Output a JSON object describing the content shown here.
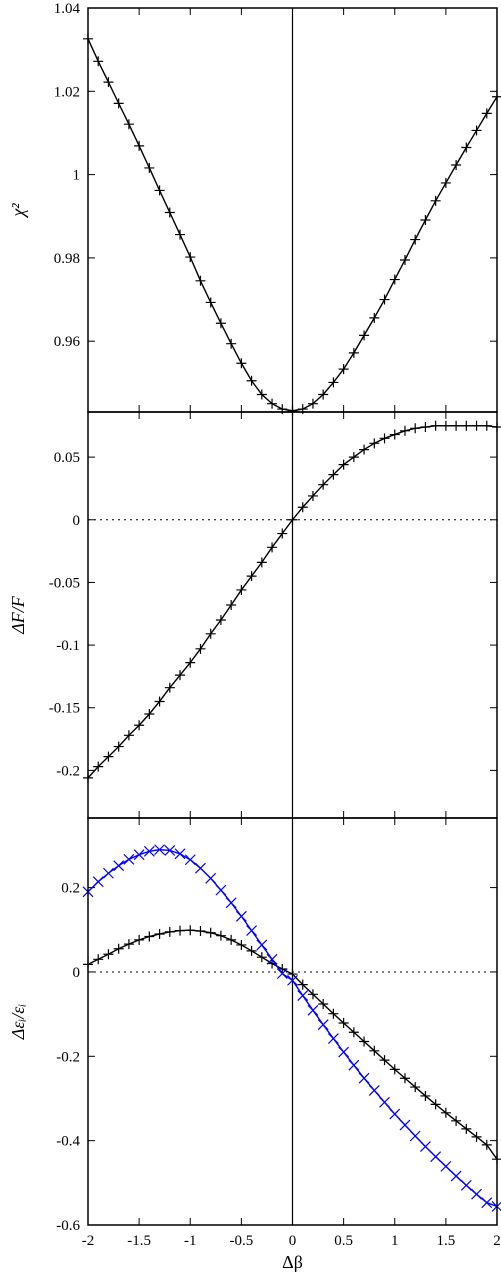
{
  "chart_data": [
    {
      "type": "line",
      "panel": "top",
      "xlabel": "",
      "ylabel": "χ²",
      "xlim": [
        -2,
        2
      ],
      "ylim": [
        0.943,
        1.04
      ],
      "x_ticks": [
        -2,
        -1.5,
        -1,
        -0.5,
        0,
        0.5,
        1,
        1.5,
        2
      ],
      "y_ticks": [
        0.96,
        0.98,
        1,
        1.02,
        1.04
      ],
      "y_tick_labels": [
        "0.96",
        "0.98",
        "1",
        "1.02",
        "1.04"
      ],
      "show_x_tick_labels": false,
      "vertical_line_x": 0,
      "zero_line": false,
      "series": [
        {
          "marker": "plus",
          "color": "#000000",
          "x": [
            -2.0,
            -1.9,
            -1.8,
            -1.7,
            -1.6,
            -1.5,
            -1.4,
            -1.3,
            -1.2,
            -1.1,
            -1.0,
            -0.9,
            -0.8,
            -0.7,
            -0.6,
            -0.5,
            -0.4,
            -0.3,
            -0.2,
            -0.1,
            0.0,
            0.1,
            0.2,
            0.3,
            0.4,
            0.5,
            0.6,
            0.7,
            0.8,
            0.9,
            1.0,
            1.1,
            1.2,
            1.3,
            1.4,
            1.5,
            1.6,
            1.7,
            1.8,
            1.9,
            2.0
          ],
          "y": [
            1.0326,
            1.0272,
            1.0222,
            1.0171,
            1.0121,
            1.0069,
            1.0016,
            0.9962,
            0.9909,
            0.9856,
            0.9802,
            0.9745,
            0.9693,
            0.9643,
            0.9594,
            0.9547,
            0.9505,
            0.9472,
            0.945,
            0.9437,
            0.9433,
            0.9437,
            0.945,
            0.9472,
            0.9501,
            0.9533,
            0.9572,
            0.9614,
            0.9656,
            0.97,
            0.9748,
            0.9795,
            0.9844,
            0.9891,
            0.9937,
            0.998,
            1.0023,
            1.0065,
            1.0106,
            1.0147,
            1.0187
          ]
        }
      ]
    },
    {
      "type": "line",
      "panel": "middle",
      "xlabel": "",
      "ylabel": "ΔF/F",
      "xlim": [
        -2,
        2
      ],
      "ylim": [
        -0.238,
        0.086
      ],
      "x_ticks": [
        -2,
        -1.5,
        -1,
        -0.5,
        0,
        0.5,
        1,
        1.5,
        2
      ],
      "y_ticks": [
        -0.2,
        -0.15,
        -0.1,
        -0.05,
        0,
        0.05
      ],
      "y_tick_labels": [
        "-0.2",
        "-0.15",
        "-0.1",
        "-0.05",
        "0",
        "0.05"
      ],
      "show_x_tick_labels": false,
      "vertical_line_x": 0,
      "zero_line": true,
      "series": [
        {
          "marker": "plus",
          "color": "#000000",
          "x": [
            -2.0,
            -1.9,
            -1.8,
            -1.7,
            -1.6,
            -1.5,
            -1.4,
            -1.3,
            -1.2,
            -1.1,
            -1.0,
            -0.9,
            -0.8,
            -0.7,
            -0.6,
            -0.5,
            -0.4,
            -0.3,
            -0.2,
            -0.1,
            0.0,
            0.1,
            0.2,
            0.3,
            0.4,
            0.5,
            0.6,
            0.7,
            0.8,
            0.9,
            1.0,
            1.1,
            1.2,
            1.3,
            1.4,
            1.5,
            1.6,
            1.7,
            1.8,
            1.9,
            2.0
          ],
          "y": [
            -0.206,
            -0.197,
            -0.189,
            -0.181,
            -0.172,
            -0.164,
            -0.155,
            -0.145,
            -0.134,
            -0.124,
            -0.114,
            -0.103,
            -0.091,
            -0.08,
            -0.068,
            -0.056,
            -0.045,
            -0.034,
            -0.022,
            -0.011,
            0.0,
            0.01,
            0.019,
            0.028,
            0.036,
            0.044,
            0.05,
            0.056,
            0.061,
            0.065,
            0.068,
            0.071,
            0.073,
            0.074,
            0.075,
            0.075,
            0.075,
            0.075,
            0.075,
            0.075,
            0.074
          ]
        }
      ]
    },
    {
      "type": "line",
      "panel": "bottom",
      "xlabel": "Δβ",
      "ylabel": "Δεᵢ/εᵢ",
      "xlim": [
        -2,
        2
      ],
      "ylim": [
        -0.6,
        0.365
      ],
      "x_ticks": [
        -2,
        -1.5,
        -1,
        -0.5,
        0,
        0.5,
        1,
        1.5,
        2
      ],
      "x_tick_labels": [
        "-2",
        "-1.5",
        "-1",
        "-0.5",
        "0",
        "0.5",
        "1",
        "1.5",
        "2"
      ],
      "y_ticks": [
        -0.6,
        -0.4,
        -0.2,
        0,
        0.2
      ],
      "y_tick_labels": [
        "-0.6",
        "-0.4",
        "-0.2",
        "0",
        "0.2"
      ],
      "show_x_tick_labels": true,
      "vertical_line_x": 0,
      "zero_line": true,
      "series": [
        {
          "marker": "plus",
          "color": "#000000",
          "x": [
            -2.0,
            -1.9,
            -1.8,
            -1.7,
            -1.6,
            -1.5,
            -1.4,
            -1.3,
            -1.2,
            -1.1,
            -1.0,
            -0.9,
            -0.8,
            -0.7,
            -0.6,
            -0.5,
            -0.4,
            -0.3,
            -0.2,
            -0.1,
            0.0,
            0.1,
            0.2,
            0.3,
            0.4,
            0.5,
            0.6,
            0.7,
            0.8,
            0.9,
            1.0,
            1.1,
            1.2,
            1.3,
            1.4,
            1.5,
            1.6,
            1.7,
            1.8,
            1.9,
            2.0
          ],
          "y": [
            0.018,
            0.03,
            0.042,
            0.055,
            0.066,
            0.076,
            0.084,
            0.09,
            0.095,
            0.098,
            0.099,
            0.097,
            0.093,
            0.086,
            0.076,
            0.064,
            0.05,
            0.035,
            0.02,
            0.007,
            -0.005,
            -0.03,
            -0.053,
            -0.076,
            -0.099,
            -0.121,
            -0.143,
            -0.165,
            -0.187,
            -0.209,
            -0.231,
            -0.252,
            -0.273,
            -0.294,
            -0.314,
            -0.334,
            -0.353,
            -0.372,
            -0.391,
            -0.41,
            -0.444
          ]
        },
        {
          "marker": "cross",
          "color": "#0000ff",
          "x": [
            -2.0,
            -1.9,
            -1.8,
            -1.7,
            -1.6,
            -1.5,
            -1.4,
            -1.3,
            -1.2,
            -1.1,
            -1.0,
            -0.9,
            -0.8,
            -0.7,
            -0.6,
            -0.5,
            -0.4,
            -0.3,
            -0.2,
            -0.1,
            0.0,
            0.1,
            0.2,
            0.3,
            0.4,
            0.5,
            0.6,
            0.7,
            0.8,
            0.9,
            1.0,
            1.1,
            1.2,
            1.3,
            1.4,
            1.5,
            1.6,
            1.7,
            1.8,
            1.9,
            2.0
          ],
          "y": [
            0.19,
            0.214,
            0.234,
            0.252,
            0.267,
            0.278,
            0.286,
            0.29,
            0.288,
            0.28,
            0.266,
            0.246,
            0.222,
            0.194,
            0.164,
            0.132,
            0.098,
            0.064,
            0.03,
            -0.004,
            -0.02,
            -0.056,
            -0.091,
            -0.125,
            -0.158,
            -0.19,
            -0.221,
            -0.252,
            -0.281,
            -0.309,
            -0.337,
            -0.363,
            -0.389,
            -0.414,
            -0.438,
            -0.461,
            -0.484,
            -0.506,
            -0.527,
            -0.547,
            -0.556
          ]
        }
      ]
    }
  ]
}
